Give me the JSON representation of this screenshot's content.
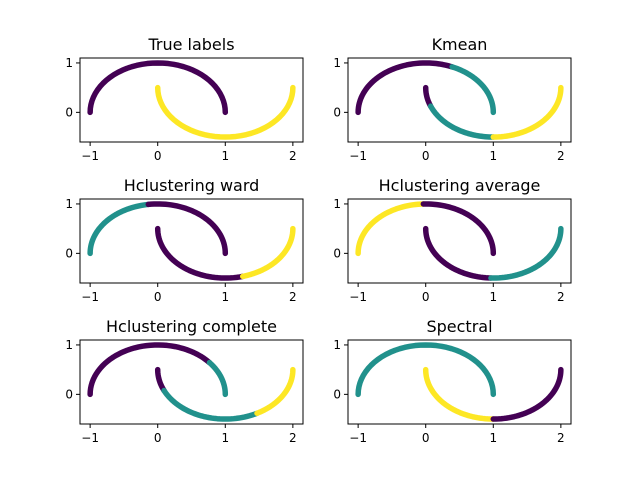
{
  "palette": {
    "purple": "#440154",
    "teal": "#21918c",
    "yellow": "#fde725"
  },
  "chart_data": [
    {
      "type": "scatter",
      "title": "True labels",
      "xlim": [
        -1.15,
        2.15
      ],
      "ylim": [
        -0.6,
        1.1
      ],
      "xticks": [
        -1,
        0,
        1,
        2
      ],
      "yticks": [
        0,
        1
      ],
      "grid": false,
      "segments": [
        {
          "shape": "upper-arc",
          "from_deg": 0,
          "to_deg": 180,
          "color": "purple"
        },
        {
          "shape": "lower-arc",
          "from_deg": 0,
          "to_deg": 180,
          "color": "yellow"
        }
      ]
    },
    {
      "type": "scatter",
      "title": "Kmean",
      "xlim": [
        -1.15,
        2.15
      ],
      "ylim": [
        -0.6,
        1.1
      ],
      "xticks": [
        -1,
        0,
        1,
        2
      ],
      "yticks": [
        0,
        1
      ],
      "grid": false,
      "segments": [
        {
          "shape": "upper-arc",
          "from_deg": 67,
          "to_deg": 180,
          "color": "purple"
        },
        {
          "shape": "upper-arc",
          "from_deg": 0,
          "to_deg": 67,
          "color": "teal"
        },
        {
          "shape": "lower-arc",
          "from_deg": 0,
          "to_deg": 22,
          "color": "purple"
        },
        {
          "shape": "lower-arc",
          "from_deg": 22,
          "to_deg": 90,
          "color": "teal"
        },
        {
          "shape": "lower-arc",
          "from_deg": 90,
          "to_deg": 180,
          "color": "yellow"
        }
      ]
    },
    {
      "type": "scatter",
      "title": "Hclustering ward",
      "xlim": [
        -1.15,
        2.15
      ],
      "ylim": [
        -0.6,
        1.1
      ],
      "xticks": [
        -1,
        0,
        1,
        2
      ],
      "yticks": [
        0,
        1
      ],
      "grid": false,
      "segments": [
        {
          "shape": "upper-arc",
          "from_deg": 98,
          "to_deg": 180,
          "color": "teal"
        },
        {
          "shape": "upper-arc",
          "from_deg": 0,
          "to_deg": 98,
          "color": "purple"
        },
        {
          "shape": "lower-arc",
          "from_deg": 0,
          "to_deg": 105,
          "color": "purple"
        },
        {
          "shape": "lower-arc",
          "from_deg": 105,
          "to_deg": 180,
          "color": "yellow"
        }
      ]
    },
    {
      "type": "scatter",
      "title": "Hclustering average",
      "xlim": [
        -1.15,
        2.15
      ],
      "ylim": [
        -0.6,
        1.1
      ],
      "xticks": [
        -1,
        0,
        1,
        2
      ],
      "yticks": [
        0,
        1
      ],
      "grid": false,
      "segments": [
        {
          "shape": "upper-arc",
          "from_deg": 92,
          "to_deg": 180,
          "color": "yellow"
        },
        {
          "shape": "upper-arc",
          "from_deg": 0,
          "to_deg": 92,
          "color": "purple"
        },
        {
          "shape": "lower-arc",
          "from_deg": 0,
          "to_deg": 88,
          "color": "purple"
        },
        {
          "shape": "lower-arc",
          "from_deg": 88,
          "to_deg": 180,
          "color": "teal"
        }
      ]
    },
    {
      "type": "scatter",
      "title": "Hclustering complete",
      "xlim": [
        -1.15,
        2.15
      ],
      "ylim": [
        -0.6,
        1.1
      ],
      "xticks": [
        -1,
        0,
        1,
        2
      ],
      "yticks": [
        0,
        1
      ],
      "grid": false,
      "segments": [
        {
          "shape": "upper-arc",
          "from_deg": 40,
          "to_deg": 180,
          "color": "purple"
        },
        {
          "shape": "upper-arc",
          "from_deg": 0,
          "to_deg": 40,
          "color": "teal"
        },
        {
          "shape": "lower-arc",
          "from_deg": 0,
          "to_deg": 25,
          "color": "purple"
        },
        {
          "shape": "lower-arc",
          "from_deg": 25,
          "to_deg": 118,
          "color": "teal"
        },
        {
          "shape": "lower-arc",
          "from_deg": 118,
          "to_deg": 180,
          "color": "yellow"
        }
      ]
    },
    {
      "type": "scatter",
      "title": "Spectral",
      "xlim": [
        -1.15,
        2.15
      ],
      "ylim": [
        -0.6,
        1.1
      ],
      "xticks": [
        -1,
        0,
        1,
        2
      ],
      "yticks": [
        0,
        1
      ],
      "grid": false,
      "segments": [
        {
          "shape": "upper-arc",
          "from_deg": 0,
          "to_deg": 180,
          "color": "teal"
        },
        {
          "shape": "lower-arc",
          "from_deg": 0,
          "to_deg": 90,
          "color": "yellow"
        },
        {
          "shape": "lower-arc",
          "from_deg": 90,
          "to_deg": 180,
          "color": "purple"
        }
      ]
    }
  ]
}
